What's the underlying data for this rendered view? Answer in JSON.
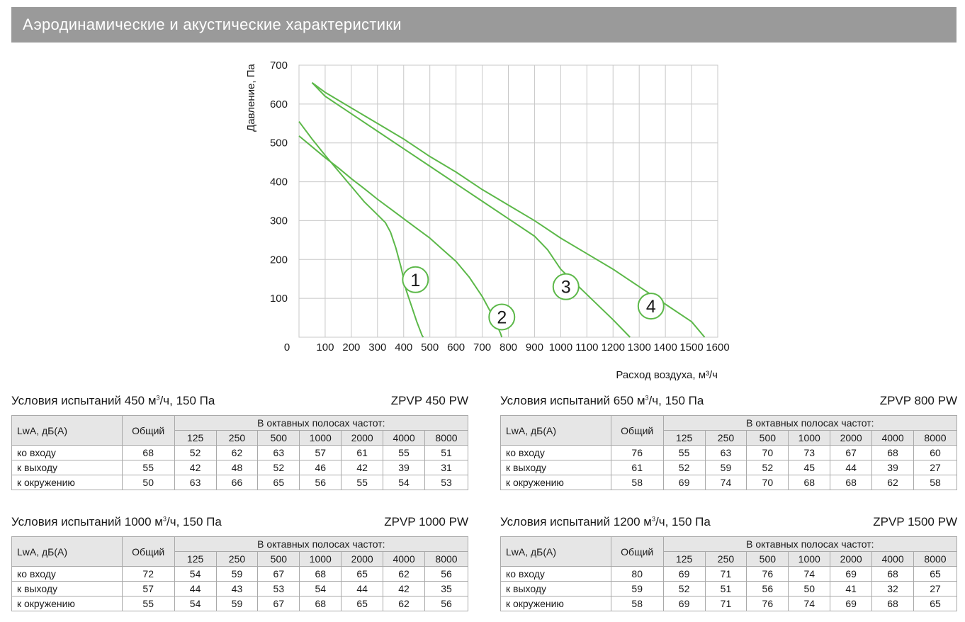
{
  "header": {
    "title": "Аэродинамические и акустические характеристики"
  },
  "chart_data": {
    "type": "line",
    "ylabel": "Давление, Па",
    "xlabel": "Расход воздуха, м³/ч",
    "xlim": [
      0,
      1600
    ],
    "ylim": [
      0,
      700
    ],
    "x_ticks": [
      0,
      100,
      200,
      300,
      400,
      500,
      600,
      700,
      800,
      900,
      1000,
      1100,
      1200,
      1300,
      1400,
      1500,
      1600
    ],
    "y_ticks": [
      100,
      200,
      300,
      400,
      500,
      600,
      700
    ],
    "grid": true,
    "line_color": "#5cb849",
    "series": [
      {
        "label": "1",
        "label_at": [
          445,
          148
        ],
        "points": [
          [
            0,
            555
          ],
          [
            50,
            510
          ],
          [
            100,
            468
          ],
          [
            150,
            428
          ],
          [
            200,
            388
          ],
          [
            250,
            348
          ],
          [
            300,
            315
          ],
          [
            330,
            295
          ],
          [
            350,
            270
          ],
          [
            370,
            230
          ],
          [
            390,
            180
          ],
          [
            410,
            120
          ],
          [
            430,
            80
          ],
          [
            450,
            40
          ],
          [
            470,
            5
          ],
          [
            475,
            0
          ]
        ]
      },
      {
        "label": "2",
        "label_at": [
          775,
          52
        ],
        "points": [
          [
            0,
            518
          ],
          [
            50,
            490
          ],
          [
            100,
            462
          ],
          [
            150,
            436
          ],
          [
            200,
            408
          ],
          [
            250,
            382
          ],
          [
            300,
            355
          ],
          [
            350,
            330
          ],
          [
            400,
            305
          ],
          [
            450,
            280
          ],
          [
            500,
            255
          ],
          [
            550,
            225
          ],
          [
            600,
            195
          ],
          [
            650,
            155
          ],
          [
            700,
            105
          ],
          [
            740,
            55
          ],
          [
            770,
            10
          ],
          [
            775,
            0
          ]
        ]
      },
      {
        "label": "3",
        "label_at": [
          1020,
          130
        ],
        "points": [
          [
            50,
            655
          ],
          [
            100,
            620
          ],
          [
            200,
            575
          ],
          [
            300,
            530
          ],
          [
            400,
            485
          ],
          [
            500,
            440
          ],
          [
            600,
            395
          ],
          [
            700,
            350
          ],
          [
            800,
            305
          ],
          [
            900,
            260
          ],
          [
            950,
            225
          ],
          [
            1000,
            175
          ],
          [
            1100,
            110
          ],
          [
            1200,
            45
          ],
          [
            1265,
            0
          ]
        ]
      },
      {
        "label": "4",
        "label_at": [
          1345,
          80
        ],
        "points": [
          [
            50,
            655
          ],
          [
            100,
            630
          ],
          [
            200,
            590
          ],
          [
            300,
            550
          ],
          [
            400,
            510
          ],
          [
            500,
            465
          ],
          [
            600,
            425
          ],
          [
            700,
            380
          ],
          [
            800,
            340
          ],
          [
            900,
            300
          ],
          [
            1000,
            255
          ],
          [
            1100,
            215
          ],
          [
            1200,
            175
          ],
          [
            1300,
            130
          ],
          [
            1400,
            85
          ],
          [
            1500,
            40
          ],
          [
            1550,
            0
          ]
        ]
      }
    ]
  },
  "tables": [
    {
      "condition": "Условия испытаний 450 м",
      "condition_unit": "/ч, 150 Па",
      "sup": "3",
      "model": "ZPVP 450 PW",
      "col_label": "LwA, дБ(A)",
      "col_total": "Общий",
      "octave_header": "В октавных полосах частот:",
      "freqs": [
        "125",
        "250",
        "500",
        "1000",
        "2000",
        "4000",
        "8000"
      ],
      "rows": [
        {
          "label": "ко входу",
          "total": "68",
          "values": [
            "52",
            "62",
            "63",
            "57",
            "61",
            "55",
            "51"
          ]
        },
        {
          "label": "к выходу",
          "total": "55",
          "values": [
            "42",
            "48",
            "52",
            "46",
            "42",
            "39",
            "31"
          ]
        },
        {
          "label": "к окружению",
          "total": "50",
          "values": [
            "63",
            "66",
            "65",
            "56",
            "55",
            "54",
            "53"
          ]
        }
      ]
    },
    {
      "condition": "Условия испытаний 650 м",
      "condition_unit": "/ч, 150 Па",
      "sup": "3",
      "model": "ZPVP 800 PW",
      "col_label": "LwA, дБ(A)",
      "col_total": "Общий",
      "octave_header": "В октавных полосах частот:",
      "freqs": [
        "125",
        "250",
        "500",
        "1000",
        "2000",
        "4000",
        "8000"
      ],
      "rows": [
        {
          "label": "ко входу",
          "total": "76",
          "values": [
            "55",
            "63",
            "70",
            "73",
            "67",
            "68",
            "60"
          ]
        },
        {
          "label": "к выходу",
          "total": "61",
          "values": [
            "52",
            "59",
            "52",
            "45",
            "44",
            "39",
            "27"
          ]
        },
        {
          "label": "к окружению",
          "total": "58",
          "values": [
            "69",
            "74",
            "70",
            "68",
            "68",
            "62",
            "58"
          ]
        }
      ]
    },
    {
      "condition": "Условия испытаний 1000 м",
      "condition_unit": "/ч, 150 Па",
      "sup": "3",
      "model": "ZPVP 1000 PW",
      "col_label": "LwA, дБ(A)",
      "col_total": "Общий",
      "octave_header": "В октавных полосах частот:",
      "freqs": [
        "125",
        "250",
        "500",
        "1000",
        "2000",
        "4000",
        "8000"
      ],
      "rows": [
        {
          "label": "ко входу",
          "total": "72",
          "values": [
            "54",
            "59",
            "67",
            "68",
            "65",
            "62",
            "56"
          ]
        },
        {
          "label": "к выходу",
          "total": "57",
          "values": [
            "44",
            "43",
            "53",
            "54",
            "44",
            "42",
            "35"
          ]
        },
        {
          "label": "к окружению",
          "total": "55",
          "values": [
            "54",
            "59",
            "67",
            "68",
            "65",
            "62",
            "56"
          ]
        }
      ]
    },
    {
      "condition": "Условия испытаний 1200 м",
      "condition_unit": "/ч, 150 Па",
      "sup": "3",
      "model": "ZPVP 1500 PW",
      "col_label": "LwA, дБ(A)",
      "col_total": "Общий",
      "octave_header": "В октавных полосах частот:",
      "freqs": [
        "125",
        "250",
        "500",
        "1000",
        "2000",
        "4000",
        "8000"
      ],
      "rows": [
        {
          "label": "ко входу",
          "total": "80",
          "values": [
            "69",
            "71",
            "76",
            "74",
            "69",
            "68",
            "65"
          ]
        },
        {
          "label": "к выходу",
          "total": "59",
          "values": [
            "52",
            "51",
            "56",
            "50",
            "41",
            "32",
            "27"
          ]
        },
        {
          "label": "к окружению",
          "total": "58",
          "values": [
            "69",
            "71",
            "76",
            "74",
            "69",
            "68",
            "65"
          ]
        }
      ]
    }
  ]
}
